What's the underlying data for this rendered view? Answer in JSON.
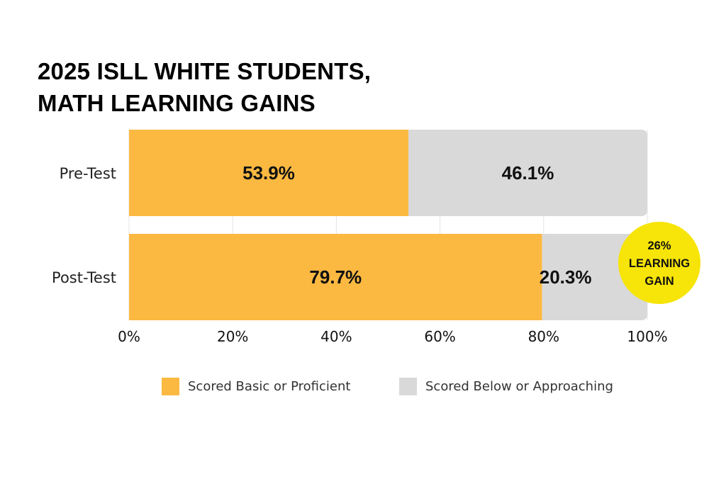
{
  "title": {
    "line1": "2025 ISLL WHITE STUDENTS,",
    "line2": "MATH LEARNING GAINS"
  },
  "colors": {
    "proficient": "#FBB942",
    "below": "#D9D9D9",
    "badge": "#F7E408",
    "grid": "#E4E4E4"
  },
  "chart_data": {
    "type": "bar",
    "orientation": "horizontal",
    "stacked": true,
    "categories": [
      "Pre-Test",
      "Post-Test"
    ],
    "series": [
      {
        "name": "Scored Basic or Proficient",
        "values": [
          53.9,
          79.7
        ],
        "labels": [
          "53.9%",
          "79.7%"
        ]
      },
      {
        "name": "Scored Below or Approaching",
        "values": [
          46.1,
          20.3
        ],
        "labels": [
          "46.1%",
          "20.3%"
        ]
      }
    ],
    "xlim": [
      0,
      100
    ],
    "xticks": [
      "0%",
      "20%",
      "40%",
      "60%",
      "80%",
      "100%"
    ],
    "grid": true,
    "legend_position": "bottom",
    "annotation": {
      "lines": [
        "26%",
        "LEARNING",
        "GAIN"
      ],
      "attached_to": "Post-Test"
    }
  },
  "legend": [
    {
      "label": "Scored Basic or Proficient"
    },
    {
      "label": "Scored Below or Approaching"
    }
  ]
}
